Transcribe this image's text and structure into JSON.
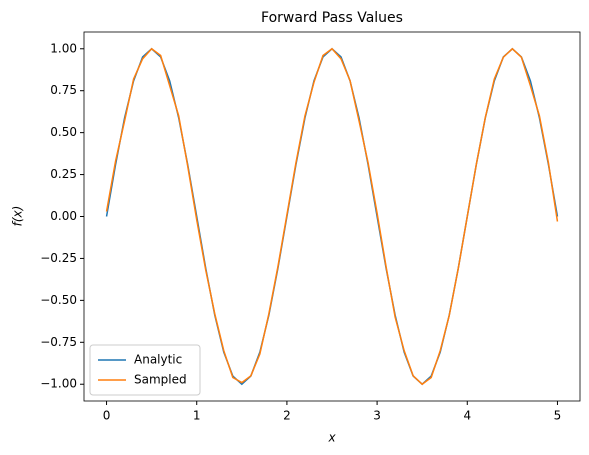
{
  "chart_data": {
    "type": "line",
    "title": "Forward Pass Values",
    "x_label": "x",
    "y_label": "f(x)",
    "x": [
      0,
      0.1,
      0.2,
      0.3,
      0.4,
      0.5,
      0.6,
      0.7,
      0.8,
      0.9,
      1,
      1.1,
      1.2,
      1.3,
      1.4,
      1.5,
      1.6,
      1.7,
      1.8,
      1.9,
      2,
      2.1,
      2.2,
      2.3,
      2.4,
      2.5,
      2.6,
      2.7,
      2.8,
      2.9,
      3,
      3.1,
      3.2,
      3.3,
      3.4,
      3.5,
      3.6,
      3.7,
      3.8,
      3.9,
      4,
      4.1,
      4.2,
      4.3,
      4.4,
      4.5,
      4.6,
      4.7,
      4.8,
      4.9,
      5
    ],
    "series": [
      {
        "name": "Analytic",
        "color": "#1f77b4",
        "values": [
          0,
          0.309,
          0.588,
          0.809,
          0.951,
          1,
          0.951,
          0.809,
          0.588,
          0.309,
          0,
          -0.309,
          -0.588,
          -0.809,
          -0.951,
          -1,
          -0.951,
          -0.809,
          -0.588,
          -0.309,
          0,
          0.309,
          0.588,
          0.809,
          0.951,
          1,
          0.951,
          0.809,
          0.588,
          0.309,
          0,
          -0.309,
          -0.588,
          -0.809,
          -0.951,
          -1,
          -0.951,
          -0.809,
          -0.588,
          -0.309,
          0,
          0.309,
          0.588,
          0.809,
          0.951,
          1,
          0.951,
          0.809,
          0.588,
          0.309,
          0
        ]
      },
      {
        "name": "Sampled",
        "color": "#ff7f0e",
        "values": [
          0.03,
          0.33,
          0.57,
          0.82,
          0.94,
          1,
          0.96,
          0.78,
          0.6,
          0.3,
          -0.02,
          -0.32,
          -0.58,
          -0.8,
          -0.96,
          -0.99,
          -0.95,
          -0.82,
          -0.58,
          -0.3,
          0.01,
          0.32,
          0.6,
          0.8,
          0.96,
          1,
          0.94,
          0.81,
          0.57,
          0.32,
          0.02,
          -0.3,
          -0.6,
          -0.8,
          -0.95,
          -1,
          -0.96,
          -0.8,
          -0.59,
          -0.31,
          0,
          0.31,
          0.59,
          0.82,
          0.95,
          1,
          0.95,
          0.78,
          0.6,
          0.32,
          -0.03
        ]
      }
    ],
    "xlim": [
      -0.25,
      5.25
    ],
    "xticks": [
      0,
      1,
      2,
      3,
      4,
      5
    ],
    "ylim": [
      -1.1,
      1.1
    ],
    "yticks": [
      {
        "value": -1,
        "label": "−1.00"
      },
      {
        "value": -0.75,
        "label": "−0.75"
      },
      {
        "value": -0.5,
        "label": "−0.50"
      },
      {
        "value": -0.25,
        "label": "−0.25"
      },
      {
        "value": 0,
        "label": "0.00"
      },
      {
        "value": 0.25,
        "label": "0.25"
      },
      {
        "value": 0.5,
        "label": "0.50"
      },
      {
        "value": 0.75,
        "label": "0.75"
      },
      {
        "value": 1,
        "label": "1.00"
      }
    ],
    "legend": "lower left",
    "grid": false
  }
}
